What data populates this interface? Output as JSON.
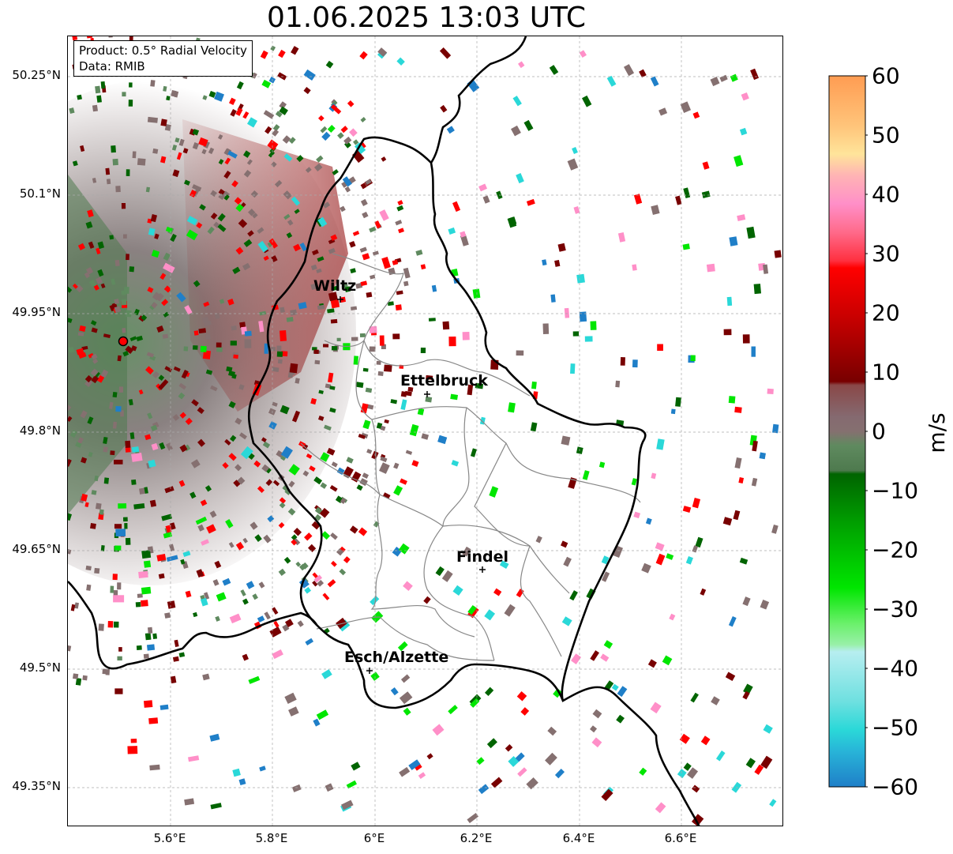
{
  "title": "01.06.2025 13:03 UTC",
  "info": {
    "product": "Product: 0.5° Radial Velocity",
    "data": "Data: RMIB"
  },
  "axes": {
    "y_ticks": [
      "50.25°N",
      "50.1°N",
      "49.95°N",
      "49.8°N",
      "49.65°N",
      "49.5°N",
      "49.35°N"
    ],
    "x_ticks": [
      "5.6°E",
      "5.8°E",
      "6°E",
      "6.2°E",
      "6.4°E",
      "6.6°E"
    ]
  },
  "colorbar": {
    "unit": "m/s",
    "ticks": [
      "60",
      "50",
      "40",
      "30",
      "20",
      "10",
      "0",
      "−10",
      "−20",
      "−30",
      "−40",
      "−50",
      "−60"
    ],
    "range": [
      -60,
      60
    ],
    "colors": {
      "pos_far": "#ff9c52",
      "pos_light": "#ffe49a",
      "pos_pink": "#ff8fc8",
      "pos_red": "#ff0000",
      "pos_dark": "#780000",
      "zero_brown": "#857070",
      "zero_green": "#5f8a5f",
      "neg_dark": "#006400",
      "neg_bright": "#00e600",
      "neg_pale": "#b7eef0",
      "neg_cyan": "#2ad8d8",
      "neg_blue": "#1f7fc8"
    }
  },
  "cities": [
    {
      "name": "Wiltz"
    },
    {
      "name": "Ettelbruck"
    },
    {
      "name": "Findel"
    },
    {
      "name": "Esch/Alzette"
    }
  ],
  "radar_site": {
    "marker": "radar-site-marker"
  }
}
